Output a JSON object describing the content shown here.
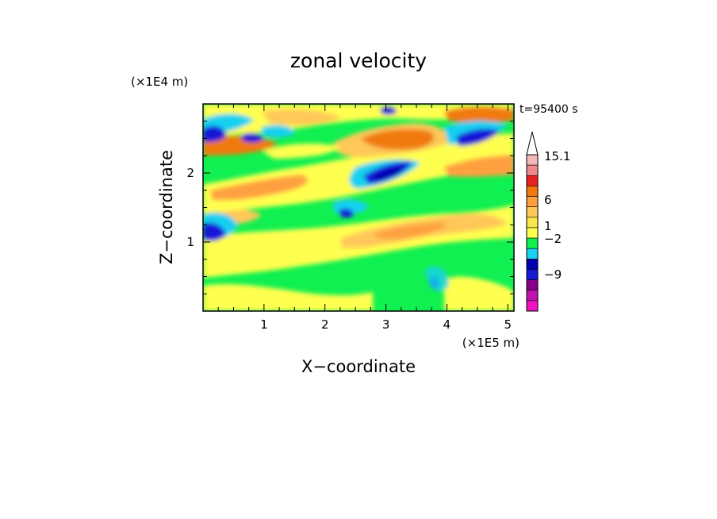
{
  "chart_data": {
    "type": "heatmap",
    "title": "zonal velocity",
    "xlabel": "X−coordinate",
    "ylabel": "Z−coordinate",
    "x_scale_label": "(×1E5 m)",
    "y_scale_label": "(×1E4 m)",
    "time_label": "t=95400 s",
    "x_ticks": [
      "1",
      "2",
      "3",
      "4",
      "5"
    ],
    "y_ticks": [
      "1",
      "2"
    ],
    "xlim": [
      0,
      5.1
    ],
    "ylim": [
      0,
      3.0
    ],
    "colorbar": {
      "tick_labels": [
        "15.1",
        "6",
        "1",
        "−2",
        "−9"
      ],
      "colors": [
        "#ffffff",
        "#f5b8b8",
        "#f08a8a",
        "#e82020",
        "#f07a10",
        "#ffa040",
        "#ffc858",
        "#f6e84a",
        "#ffff50",
        "#10f050",
        "#18d0f0",
        "#0000b0",
        "#1818d8",
        "#880088",
        "#c010b0",
        "#f010c0"
      ]
    },
    "grid": false
  }
}
